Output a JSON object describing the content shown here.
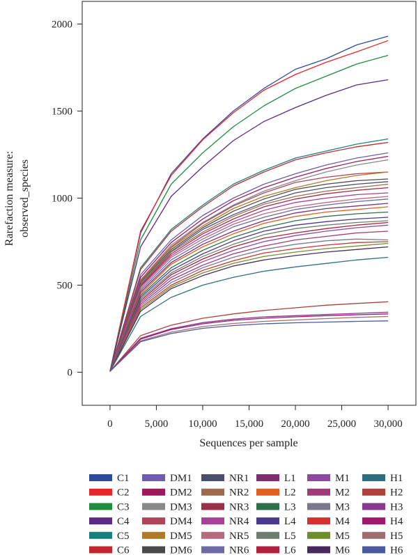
{
  "chart_data": {
    "type": "line",
    "xlabel": "Sequences per sample",
    "ylabel": [
      "Rarefaction measure:",
      "observed_species"
    ],
    "xlim": [
      -3000,
      33000
    ],
    "ylim": [
      -190,
      2130
    ],
    "x_ticks": [
      0,
      5000,
      10000,
      15000,
      20000,
      25000,
      30000
    ],
    "x_tick_labels": [
      "0",
      "5,000",
      "10,000",
      "15,000",
      "20,000",
      "25,000",
      "30,000"
    ],
    "y_ticks": [
      0,
      500,
      1000,
      1500,
      2000
    ],
    "y_tick_labels": [
      "0",
      "500",
      "1000",
      "1500",
      "2000"
    ],
    "grid": false,
    "legend_position": "bottom",
    "x": [
      0,
      3300,
      6600,
      10000,
      13300,
      16600,
      20000,
      23300,
      26600,
      30000
    ],
    "series": [
      {
        "name": "C1",
        "color": "#2E4A9E",
        "values": [
          5,
          800,
          1140,
          1340,
          1500,
          1630,
          1740,
          1800,
          1880,
          1930
        ]
      },
      {
        "name": "C2",
        "color": "#E8262A",
        "values": [
          5,
          810,
          1130,
          1335,
          1490,
          1620,
          1710,
          1780,
          1840,
          1905
        ]
      },
      {
        "name": "C3",
        "color": "#1F8E3C",
        "values": [
          5,
          760,
          1080,
          1260,
          1410,
          1530,
          1630,
          1700,
          1770,
          1820
        ]
      },
      {
        "name": "C4",
        "color": "#5B2A86",
        "values": [
          5,
          720,
          1010,
          1180,
          1330,
          1440,
          1520,
          1590,
          1650,
          1680
        ]
      },
      {
        "name": "C5",
        "color": "#17807E",
        "values": [
          5,
          600,
          820,
          960,
          1080,
          1160,
          1230,
          1270,
          1310,
          1340
        ]
      },
      {
        "name": "C6",
        "color": "#C1272D",
        "values": [
          5,
          590,
          810,
          950,
          1070,
          1150,
          1220,
          1260,
          1295,
          1320
        ]
      },
      {
        "name": "DM1",
        "color": "#6C5BB0",
        "values": [
          5,
          560,
          760,
          900,
          1000,
          1080,
          1140,
          1190,
          1230,
          1260
        ]
      },
      {
        "name": "DM2",
        "color": "#A0185A",
        "values": [
          5,
          545,
          745,
          880,
          985,
          1060,
          1120,
          1170,
          1210,
          1240
        ]
      },
      {
        "name": "DM3",
        "color": "#888888",
        "values": [
          5,
          530,
          730,
          860,
          960,
          1040,
          1100,
          1150,
          1190,
          1220
        ]
      },
      {
        "name": "DM4",
        "color": "#B0455A",
        "values": [
          5,
          525,
          720,
          855,
          955,
          1030,
          1090,
          1120,
          1140,
          1150
        ]
      },
      {
        "name": "DM5",
        "color": "#B07A28",
        "values": [
          5,
          520,
          715,
          840,
          940,
          1010,
          1060,
          1100,
          1130,
          1150
        ]
      },
      {
        "name": "DM6",
        "color": "#4A4A4A",
        "values": [
          5,
          515,
          705,
          830,
          925,
          995,
          1050,
          1080,
          1100,
          1110
        ]
      },
      {
        "name": "NR1",
        "color": "#4B4F6E",
        "values": [
          5,
          505,
          695,
          820,
          905,
          975,
          1030,
          1060,
          1080,
          1095
        ]
      },
      {
        "name": "NR2",
        "color": "#9E6A4E",
        "values": [
          5,
          500,
          690,
          805,
          895,
          965,
          1010,
          1040,
          1060,
          1080
        ]
      },
      {
        "name": "NR3",
        "color": "#9C2F4A",
        "values": [
          5,
          495,
          680,
          795,
          880,
          950,
          995,
          1025,
          1045,
          1060
        ]
      },
      {
        "name": "NR4",
        "color": "#A8409A",
        "values": [
          5,
          490,
          670,
          780,
          865,
          930,
          975,
          1000,
          1020,
          1030
        ]
      },
      {
        "name": "NR5",
        "color": "#B86A7E",
        "values": [
          5,
          480,
          660,
          765,
          850,
          910,
          950,
          975,
          995,
          1010
        ]
      },
      {
        "name": "NR6",
        "color": "#6E6AA8",
        "values": [
          5,
          470,
          645,
          750,
          835,
          890,
          935,
          960,
          980,
          995
        ]
      },
      {
        "name": "L1",
        "color": "#7E2E6E",
        "values": [
          5,
          460,
          630,
          735,
          810,
          870,
          915,
          940,
          955,
          970
        ]
      },
      {
        "name": "L2",
        "color": "#E0601E",
        "values": [
          5,
          450,
          620,
          720,
          795,
          855,
          895,
          920,
          935,
          950
        ]
      },
      {
        "name": "L3",
        "color": "#2F6E4A",
        "values": [
          5,
          440,
          600,
          700,
          775,
          830,
          870,
          895,
          910,
          920
        ]
      },
      {
        "name": "L4",
        "color": "#4A3A8E",
        "values": [
          5,
          430,
          585,
          680,
          755,
          810,
          845,
          865,
          880,
          890
        ]
      },
      {
        "name": "L5",
        "color": "#6E7E6E",
        "values": [
          5,
          420,
          570,
          665,
          735,
          790,
          825,
          845,
          860,
          870
        ]
      },
      {
        "name": "L6",
        "color": "#B0203A",
        "values": [
          5,
          410,
          560,
          650,
          720,
          770,
          800,
          825,
          845,
          860
        ]
      },
      {
        "name": "M1",
        "color": "#8E4AA0",
        "values": [
          5,
          400,
          545,
          635,
          700,
          750,
          785,
          810,
          830,
          845
        ]
      },
      {
        "name": "M2",
        "color": "#A03A78",
        "values": [
          5,
          390,
          530,
          615,
          680,
          725,
          760,
          780,
          800,
          810
        ]
      },
      {
        "name": "M3",
        "color": "#7A788E",
        "values": [
          5,
          380,
          515,
          600,
          660,
          705,
          735,
          755,
          765,
          760
        ]
      },
      {
        "name": "M4",
        "color": "#D83030",
        "values": [
          5,
          370,
          500,
          585,
          640,
          685,
          710,
          730,
          745,
          750
        ]
      },
      {
        "name": "M5",
        "color": "#6E8E2E",
        "values": [
          5,
          360,
          490,
          570,
          625,
          665,
          690,
          710,
          725,
          740
        ]
      },
      {
        "name": "M6",
        "color": "#4A2A5E",
        "values": [
          5,
          350,
          480,
          555,
          610,
          645,
          670,
          690,
          705,
          720
        ]
      },
      {
        "name": "H1",
        "color": "#2E6E7E",
        "values": [
          5,
          320,
          430,
          500,
          545,
          580,
          605,
          625,
          645,
          660
        ]
      },
      {
        "name": "H2",
        "color": "#B0403A",
        "values": [
          5,
          210,
          270,
          310,
          335,
          355,
          370,
          385,
          395,
          405
        ]
      },
      {
        "name": "H3",
        "color": "#8A3A8E",
        "values": [
          5,
          195,
          250,
          285,
          305,
          318,
          325,
          332,
          338,
          345
        ]
      },
      {
        "name": "H4",
        "color": "#A0186E",
        "values": [
          5,
          190,
          245,
          278,
          298,
          310,
          318,
          325,
          330,
          335
        ]
      },
      {
        "name": "H5",
        "color": "#9E7070",
        "values": [
          5,
          180,
          230,
          262,
          280,
          292,
          300,
          308,
          315,
          320
        ]
      },
      {
        "name": "H6",
        "color": "#4A5A9E",
        "values": [
          5,
          175,
          222,
          252,
          268,
          278,
          284,
          288,
          292,
          295
        ]
      }
    ]
  }
}
